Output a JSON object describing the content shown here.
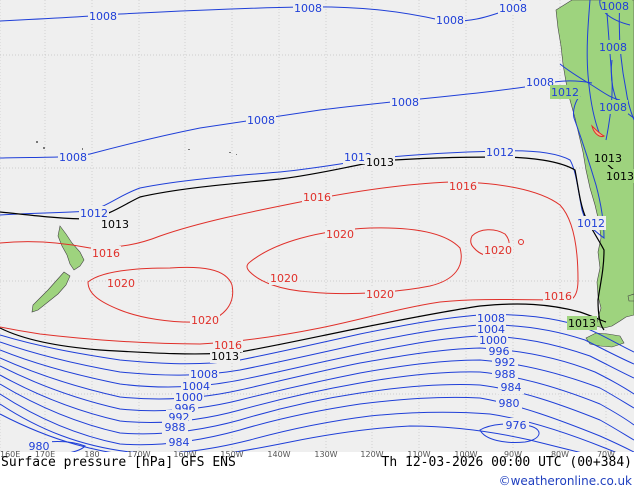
{
  "map": {
    "title": "Surface pressure [hPa] GFS ENS",
    "valid_time": "Th 12-03-2026 00:00 UTC (00+384)",
    "credit": "©weatheronline.co.uk",
    "colors": {
      "ocean": "#efefef",
      "land": "#9ed37e",
      "low_isobar": "#1f3fd8",
      "high_isobar": "#e0302a",
      "standard_isobar": "#000000",
      "grid": "#bdbdbd"
    },
    "longitude_ticks": [
      "160E",
      "170E",
      "180",
      "170W",
      "160W",
      "150W",
      "140W",
      "130W",
      "120W",
      "110W",
      "100W",
      "90W",
      "80W",
      "70W"
    ],
    "isobar_labels": {
      "l1008_a": "1008",
      "l1008_b": "1008",
      "l1008_c": "1008",
      "l1008_d": "1008",
      "l1008_e": "1008",
      "l1008_f": "1008",
      "l1008_g": "1008",
      "l1008_h": "1008",
      "l1008_i": "1008",
      "l1008_j": "1008",
      "l1008_k": "1008",
      "l1012_a": "1012",
      "l1012_b": "1012",
      "l1012_c": "1012",
      "l1012_d": "1012",
      "l1012_e": "1012",
      "l1013_a": "1013",
      "l1013_b": "1013",
      "l1013_c": "1013",
      "l1013_d": "1013",
      "l1013_e": "1013",
      "l1013_f": "1013",
      "l1016_a": "1016",
      "l1016_b": "1016",
      "l1016_c": "1016",
      "l1016_d": "1016",
      "l1020_a": "1020",
      "l1020_b": "1020",
      "l1020_c": "1020",
      "l1020_d": "1020",
      "l1020_e": "1020",
      "l1020_f": "1020",
      "l1004_a": "1004",
      "l1004_b": "1004",
      "l1000_a": "1000",
      "l1000_b": "1000",
      "l996_a": "996",
      "l996_b": "996",
      "l992_a": "992",
      "l992_b": "992",
      "l988_a": "988",
      "l988_b": "988",
      "l984_a": "984",
      "l984_b": "984",
      "l980_a": "980",
      "l980_b": "980",
      "l976_a": "976"
    }
  }
}
